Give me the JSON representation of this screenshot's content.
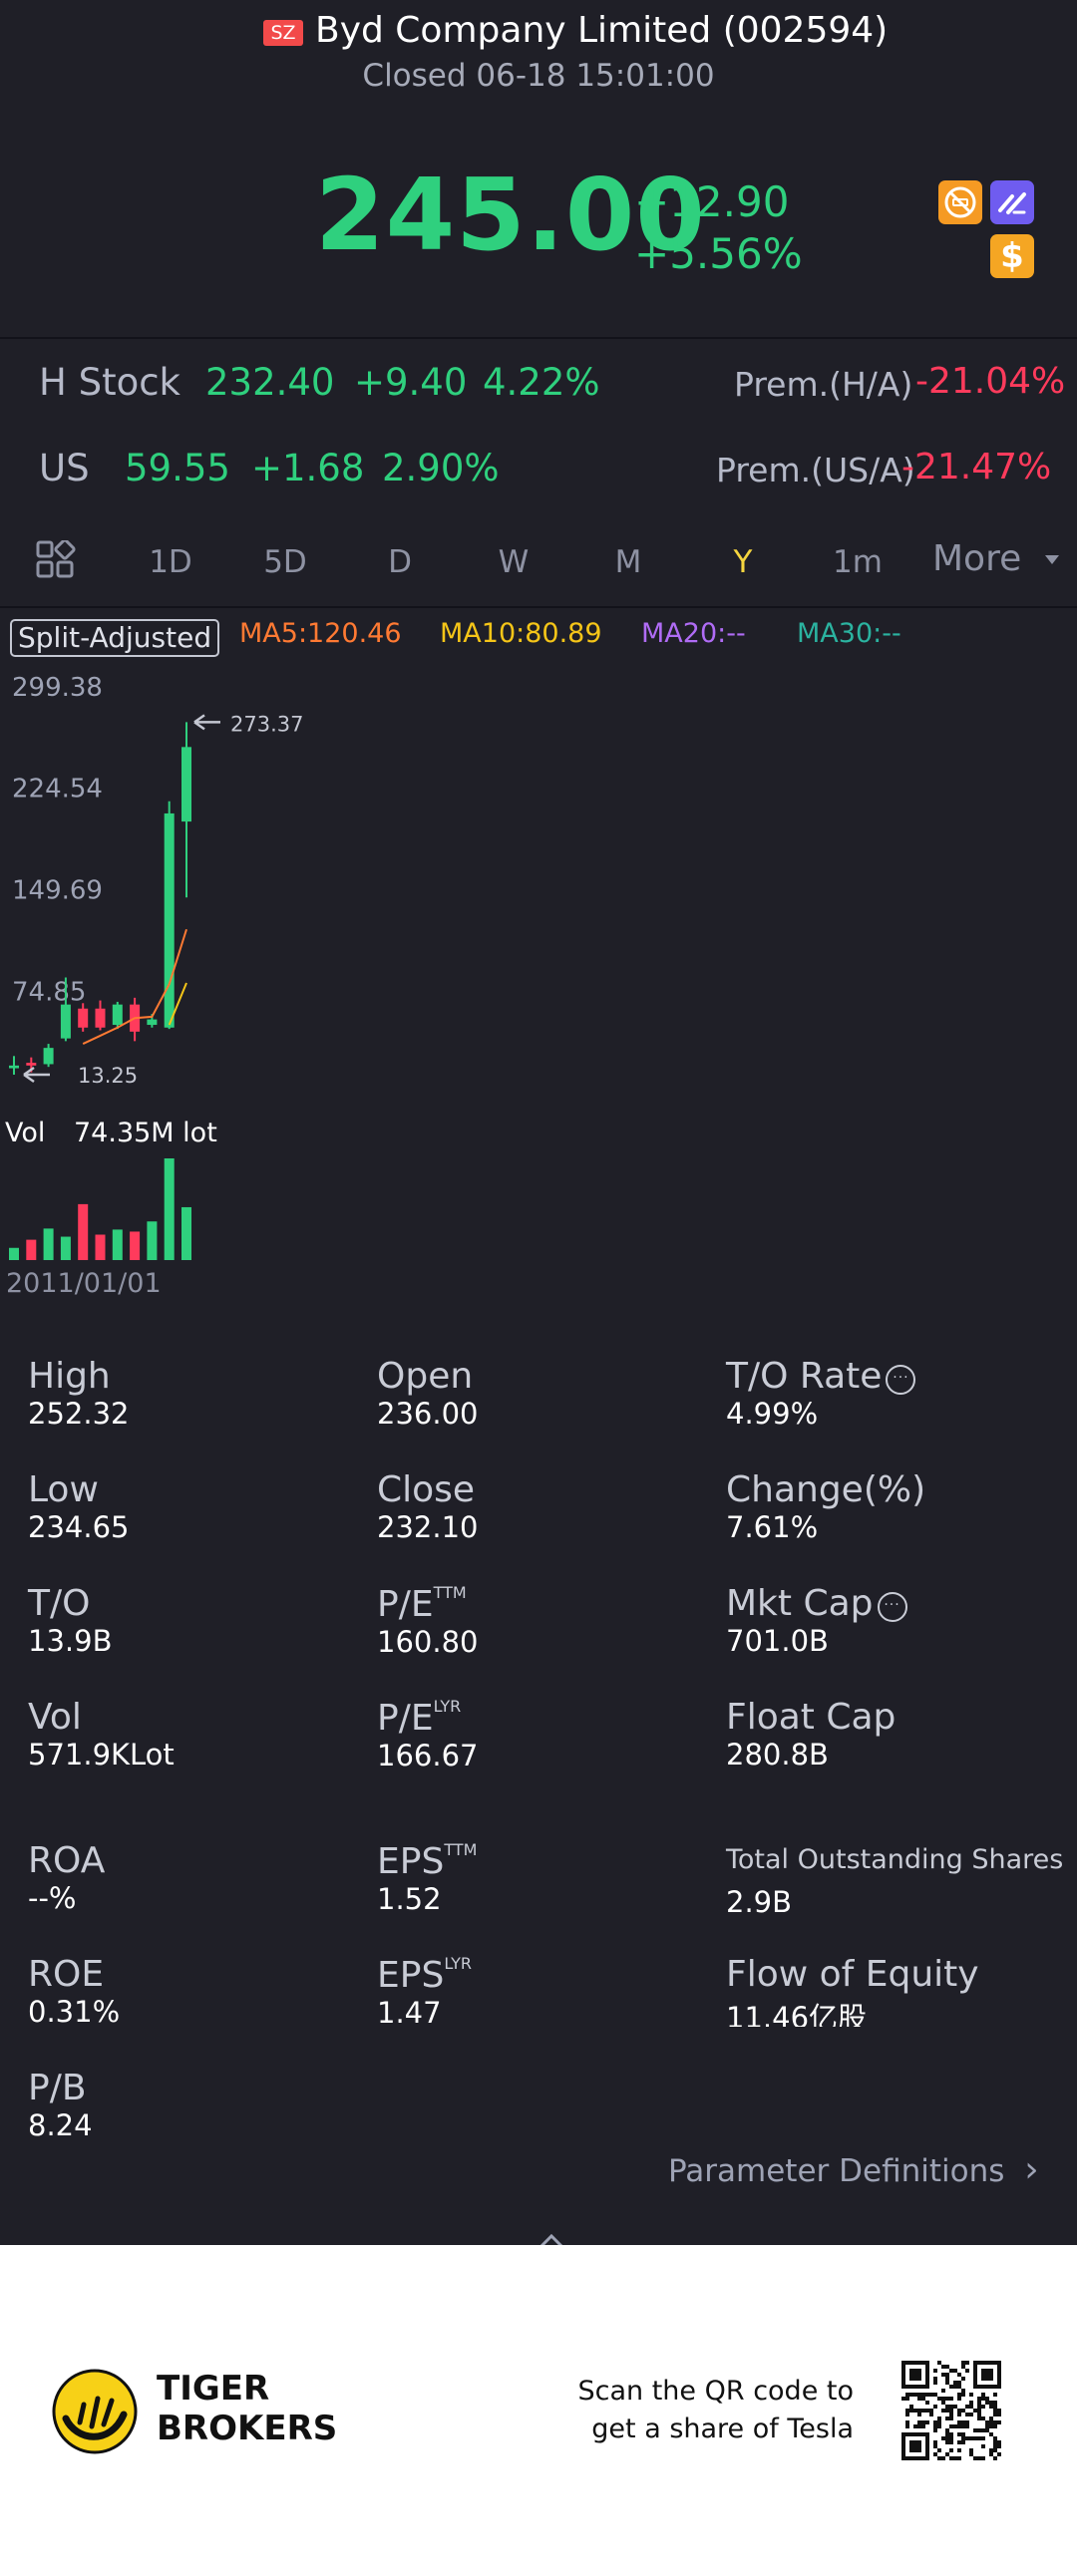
{
  "header": {
    "market_badge": "SZ",
    "stock_name": "Byd Company Limited (002594)",
    "status": "Closed 06-18 15:01:00",
    "price": "245.00",
    "change_abs": "+12.90",
    "change_pct": "+5.56%",
    "icons": [
      "no-ads-icon",
      "trade-icon",
      "dollar-icon"
    ],
    "dollar_glyph": "$"
  },
  "cross_listings": [
    {
      "name": "H Stock",
      "price": "232.40",
      "change": "+9.40",
      "pct": "4.22%",
      "prem_label": "Prem.(H/A)",
      "prem_value": "-21.04%"
    },
    {
      "name": "US",
      "price": "59.55",
      "change": "+1.68",
      "pct": "2.90%",
      "prem_label": "Prem.(US/A)",
      "prem_value": "-21.47%"
    }
  ],
  "tabs": {
    "items": [
      "1D",
      "5D",
      "D",
      "W",
      "M",
      "Y",
      "1m"
    ],
    "selected": "Y",
    "more": "More"
  },
  "chart": {
    "split_adjusted": "Split-Adjusted",
    "ma5": "MA5:120.46",
    "ma10": "MA10:80.89",
    "ma20": "MA20:--",
    "ma30": "MA30:--",
    "y_labels": [
      "299.38",
      "224.54",
      "149.69",
      "74.85"
    ],
    "max_marker": "273.37",
    "min_marker": "13.25",
    "vol_label": "Vol",
    "vol_value": "74.35M lot",
    "x_start": "2011/01/01"
  },
  "chart_data": {
    "type": "candlestick",
    "period": "yearly",
    "ylim": [
      13.25,
      299.38
    ],
    "candles": [
      {
        "open": 18,
        "close": 20,
        "high": 27,
        "low": 13.25,
        "dir": "up"
      },
      {
        "open": 22,
        "close": 20,
        "high": 26,
        "low": 15,
        "dir": "down"
      },
      {
        "open": 21,
        "close": 33,
        "high": 36,
        "low": 19,
        "dir": "up"
      },
      {
        "open": 40,
        "close": 65,
        "high": 85,
        "low": 38,
        "dir": "up"
      },
      {
        "open": 62,
        "close": 48,
        "high": 66,
        "low": 45,
        "dir": "down"
      },
      {
        "open": 62,
        "close": 48,
        "high": 68,
        "low": 46,
        "dir": "down"
      },
      {
        "open": 50,
        "close": 65,
        "high": 67,
        "low": 47,
        "dir": "up"
      },
      {
        "open": 65,
        "close": 45,
        "high": 70,
        "low": 38,
        "dir": "down"
      },
      {
        "open": 50,
        "close": 54,
        "high": 58,
        "low": 48,
        "dir": "up"
      },
      {
        "open": 48,
        "close": 206,
        "high": 215,
        "low": 47,
        "dir": "up"
      },
      {
        "open": 200,
        "close": 255,
        "high": 273.37,
        "low": 144,
        "dir": "up"
      }
    ],
    "ma5_line": [
      null,
      null,
      null,
      null,
      36,
      42,
      48,
      55,
      56,
      80,
      120.46
    ],
    "ma10_line": [
      null,
      null,
      null,
      null,
      null,
      null,
      null,
      null,
      null,
      50,
      80.89
    ],
    "volume": [
      0.12,
      0.2,
      0.31,
      0.23,
      0.55,
      0.25,
      0.3,
      0.28,
      0.38,
      1.0,
      0.52
    ]
  },
  "stats": {
    "col1": [
      {
        "label": "High",
        "value": "252.32"
      },
      {
        "label": "Low",
        "value": "234.65"
      },
      {
        "label": "T/O",
        "value": "13.9B"
      },
      {
        "label": "Vol",
        "value": "571.9KLot"
      },
      {
        "label": "ROA",
        "value": "--%"
      },
      {
        "label": "ROE",
        "value": "0.31%"
      },
      {
        "label": "P/B",
        "value": "8.24"
      }
    ],
    "col2": [
      {
        "label": "Open",
        "value": "236.00"
      },
      {
        "label": "Close",
        "value": "232.10"
      },
      {
        "label": "P/E",
        "sup": "TTM",
        "value": "160.80"
      },
      {
        "label": "P/E",
        "sup": "LYR",
        "value": "166.67"
      },
      {
        "label": "EPS",
        "sup": "TTM",
        "value": "1.52"
      },
      {
        "label": "EPS",
        "sup": "LYR",
        "value": "1.47"
      }
    ],
    "col3": [
      {
        "label": "T/O Rate",
        "value": "4.99%"
      },
      {
        "label": "Change(%)",
        "value": "7.61%"
      },
      {
        "label": "Mkt Cap",
        "value": "701.0B"
      },
      {
        "label": "Float Cap",
        "value": "280.8B"
      },
      {
        "label": "Total Outstanding Shares",
        "value": "2.9B"
      },
      {
        "label": "Flow of Equity",
        "value": "11.46亿股"
      }
    ],
    "param_defs": "Parameter Definitions",
    "chevron_right": "›",
    "info_glyph": "···"
  },
  "footer": {
    "brand_line1": "TIGER",
    "brand_line2": "BROKERS",
    "scan_line1": "Scan the QR code to",
    "scan_line2": "get a share of Tesla"
  },
  "colors": {
    "up": "#2fd07e",
    "down": "#ff3b5c",
    "background": "#1f1f27",
    "selected_tab": "#f5d53f",
    "ma5": "#ff7a33",
    "ma10": "#f5c518",
    "ma20": "#b06cf5",
    "ma30": "#2bb3a0"
  }
}
